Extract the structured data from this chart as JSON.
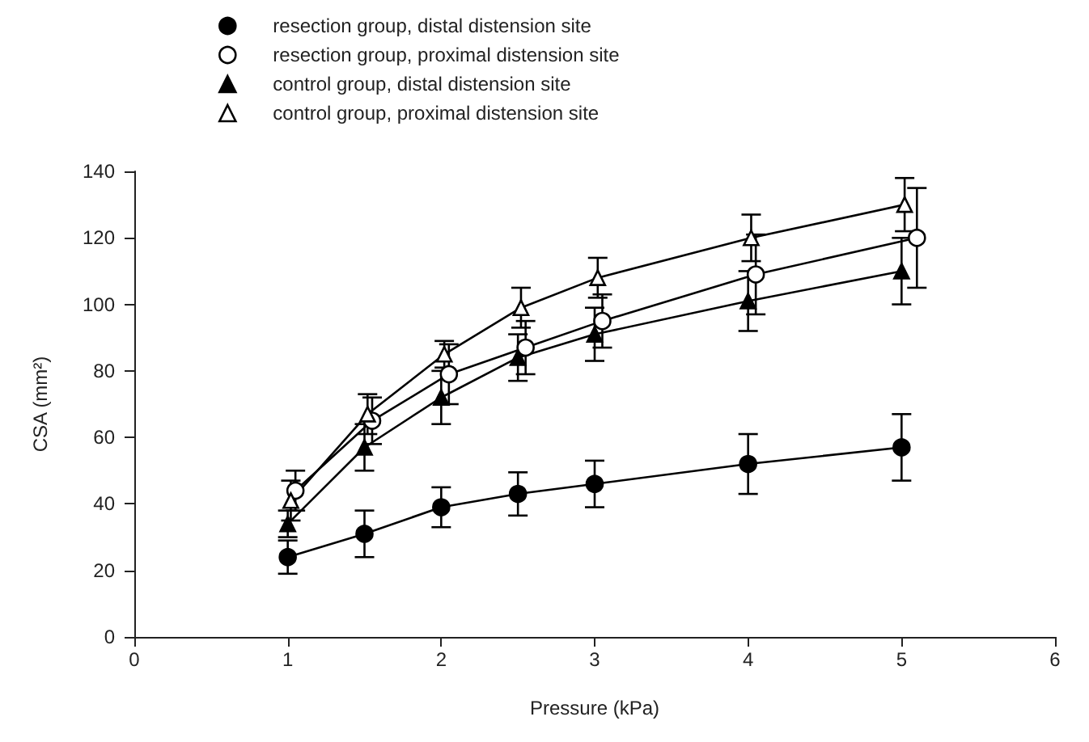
{
  "chart_data": {
    "type": "line",
    "xlabel": "Pressure (kPa)",
    "ylabel": "CSA (mm²)",
    "xlim": [
      0,
      6
    ],
    "xticks": [
      0,
      1,
      2,
      3,
      4,
      5,
      6
    ],
    "ylim": [
      0,
      140
    ],
    "yticks": [
      0,
      20,
      40,
      60,
      80,
      100,
      120,
      140
    ],
    "grid": false,
    "legend": "top left",
    "line_style": "solid",
    "series": [
      {
        "name": "resection group, distal distension site",
        "color": "#000000",
        "marker": "circle",
        "x": [
          1,
          1.5,
          2,
          2.5,
          3,
          4,
          5
        ],
        "values": [
          24,
          31,
          39,
          43,
          46,
          52,
          57
        ],
        "errors": [
          5,
          7,
          6,
          6.5,
          7,
          9,
          10
        ]
      },
      {
        "name": "resection group, proximal distension site",
        "color": "#000000",
        "marker": "circle-open",
        "x": [
          1.05,
          1.55,
          2.05,
          2.55,
          3.05,
          4.05,
          5.1
        ],
        "values": [
          44,
          65,
          79,
          87,
          95,
          109,
          120
        ],
        "errors": [
          6,
          7,
          9,
          8,
          8,
          12,
          15
        ]
      },
      {
        "name": "control group, distal distension site",
        "color": "#000000",
        "marker": "triangle",
        "x": [
          1,
          1.5,
          2,
          2.5,
          3,
          4,
          5
        ],
        "values": [
          34,
          57,
          72,
          84,
          91,
          101,
          110
        ],
        "errors": [
          4,
          7,
          8,
          7,
          8,
          9,
          10
        ]
      },
      {
        "name": "control group, proximal distension site",
        "color": "#000000",
        "marker": "triangle-open",
        "x": [
          1.02,
          1.52,
          2.02,
          2.52,
          3.02,
          4.02,
          5.02
        ],
        "values": [
          41,
          67,
          85,
          99,
          108,
          120,
          130
        ],
        "errors": [
          6,
          6,
          4,
          6,
          6,
          7,
          8
        ]
      }
    ]
  }
}
